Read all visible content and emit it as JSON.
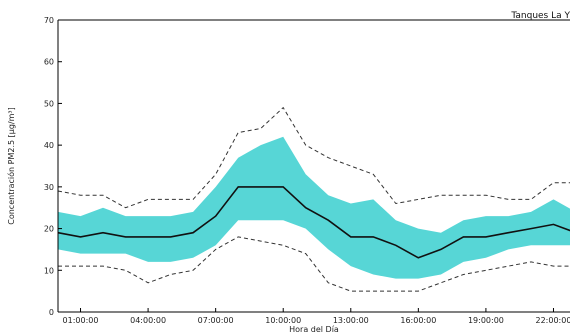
{
  "chart_data": {
    "type": "area",
    "title": "Tanques La Y",
    "xlabel": "Hora del Día",
    "ylabel": "Concentración PM2.5 [μg/m³]",
    "ylim": [
      0,
      70
    ],
    "yticks": [
      0,
      10,
      20,
      30,
      40,
      50,
      60,
      70
    ],
    "xlim": [
      0,
      23
    ],
    "xticks": [
      1,
      4,
      7,
      10,
      13,
      16,
      19,
      22
    ],
    "xtick_labels": [
      "01:00:00",
      "04:00:00",
      "07:00:00",
      "10:00:00",
      "13:00:00",
      "16:00:00",
      "19:00:00",
      "22:00:00"
    ],
    "grid": false,
    "x": [
      0,
      1,
      2,
      3,
      4,
      5,
      6,
      7,
      8,
      9,
      10,
      11,
      12,
      13,
      14,
      15,
      16,
      17,
      18,
      19,
      20,
      21,
      22,
      23
    ],
    "series": [
      {
        "role": "median",
        "style": "solid-line",
        "color": "#111111",
        "values": [
          19,
          18,
          19,
          18,
          18,
          18,
          19,
          23,
          30,
          30,
          30,
          25,
          22,
          18,
          18,
          16,
          13,
          15,
          18,
          18,
          19,
          20,
          21,
          19
        ]
      },
      {
        "role": "band-lower",
        "style": "fill",
        "color": "#57d6d6",
        "values": [
          15,
          14,
          14,
          14,
          12,
          12,
          13,
          16,
          22,
          22,
          22,
          20,
          15,
          11,
          9,
          8,
          8,
          9,
          12,
          13,
          15,
          16,
          16,
          16
        ]
      },
      {
        "role": "band-upper",
        "style": "fill",
        "color": "#57d6d6",
        "values": [
          24,
          23,
          25,
          23,
          23,
          23,
          24,
          30,
          37,
          40,
          42,
          33,
          28,
          26,
          27,
          22,
          20,
          19,
          22,
          23,
          23,
          24,
          27,
          24
        ]
      },
      {
        "role": "envelope-lower",
        "style": "dashed-line",
        "color": "#333333",
        "values": [
          11,
          11,
          11,
          10,
          7,
          9,
          10,
          15,
          18,
          17,
          16,
          14,
          7,
          5,
          5,
          5,
          5,
          7,
          9,
          10,
          11,
          12,
          11,
          11
        ]
      },
      {
        "role": "envelope-upper",
        "style": "dashed-line",
        "color": "#333333",
        "values": [
          29,
          28,
          28,
          25,
          27,
          27,
          27,
          33,
          43,
          44,
          49,
          40,
          37,
          35,
          33,
          26,
          27,
          28,
          28,
          28,
          27,
          27,
          31,
          31
        ]
      }
    ]
  }
}
